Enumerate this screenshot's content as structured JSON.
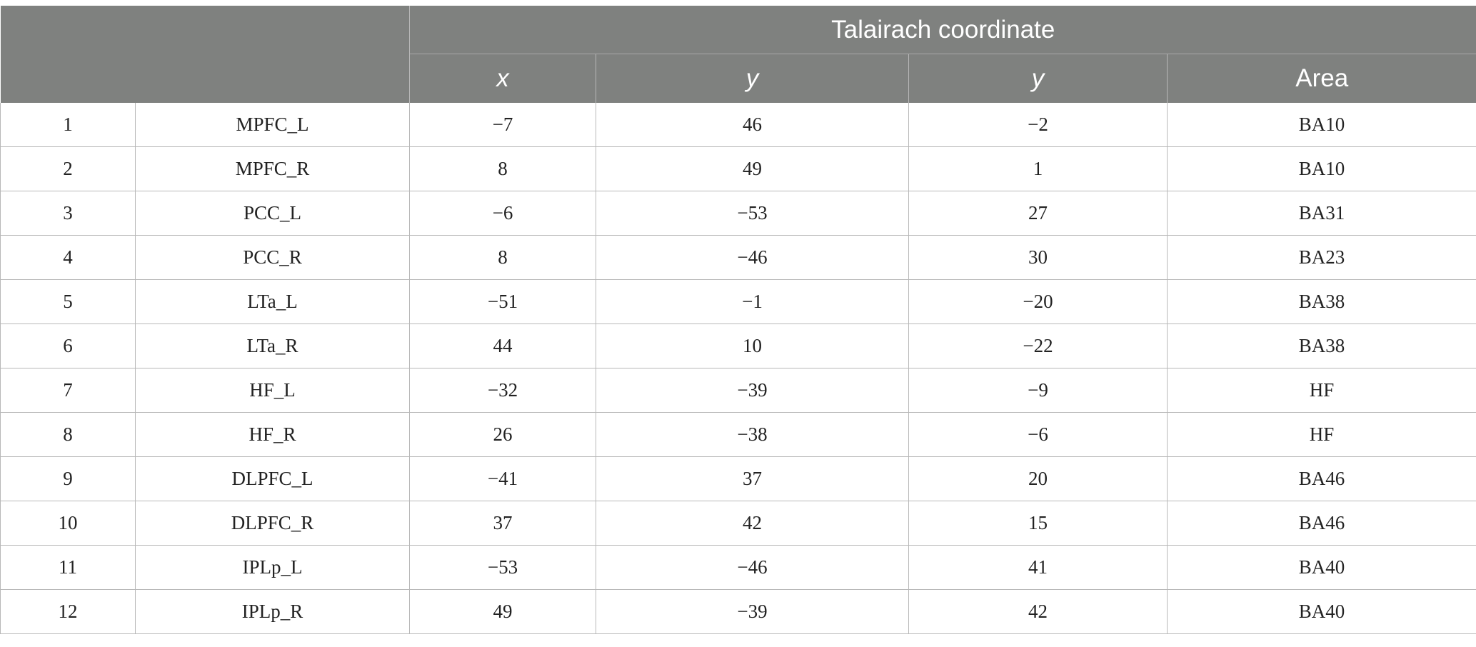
{
  "header": {
    "group_title": "Talairach coordinate",
    "columns": [
      "x",
      "y",
      "y",
      "Area"
    ]
  },
  "rows": [
    {
      "index": "1",
      "region": "MPFC_L",
      "x": "−7",
      "y": "46",
      "z": "−2",
      "area": "BA10"
    },
    {
      "index": "2",
      "region": "MPFC_R",
      "x": "8",
      "y": "49",
      "z": "1",
      "area": "BA10"
    },
    {
      "index": "3",
      "region": "PCC_L",
      "x": "−6",
      "y": "−53",
      "z": "27",
      "area": "BA31"
    },
    {
      "index": "4",
      "region": "PCC_R",
      "x": "8",
      "y": "−46",
      "z": "30",
      "area": "BA23"
    },
    {
      "index": "5",
      "region": "LTa_L",
      "x": "−51",
      "y": "−1",
      "z": "−20",
      "area": "BA38"
    },
    {
      "index": "6",
      "region": "LTa_R",
      "x": "44",
      "y": "10",
      "z": "−22",
      "area": "BA38"
    },
    {
      "index": "7",
      "region": "HF_L",
      "x": "−32",
      "y": "−39",
      "z": "−9",
      "area": "HF"
    },
    {
      "index": "8",
      "region": "HF_R",
      "x": "26",
      "y": "−38",
      "z": "−6",
      "area": "HF"
    },
    {
      "index": "9",
      "region": "DLPFC_L",
      "x": "−41",
      "y": "37",
      "z": "20",
      "area": "BA46"
    },
    {
      "index": "10",
      "region": "DLPFC_R",
      "x": "37",
      "y": "42",
      "z": "15",
      "area": "BA46"
    },
    {
      "index": "11",
      "region": "IPLp_L",
      "x": "−53",
      "y": "−46",
      "z": "41",
      "area": "BA40"
    },
    {
      "index": "12",
      "region": "IPLp_R",
      "x": "49",
      "y": "−39",
      "z": "42",
      "area": "BA40"
    }
  ],
  "colors": {
    "header_bg": "#7f817f",
    "header_text": "#ffffff",
    "grid_line": "#b8b8b8",
    "body_text": "#222222"
  }
}
